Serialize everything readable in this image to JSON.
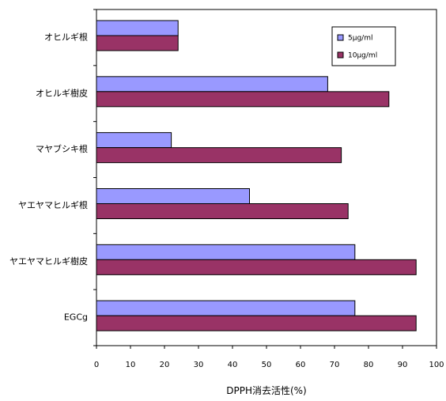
{
  "chart_data": {
    "type": "bar",
    "orientation": "horizontal",
    "categories": [
      "オヒルギ根",
      "オヒルギ樹皮",
      "マヤブシキ根",
      "ヤエヤマヒルギ根",
      "ヤエヤマヒルギ樹皮",
      "EGCg"
    ],
    "series": [
      {
        "name": "5μg/ml",
        "color": "#9999ff",
        "values": [
          24,
          68,
          22,
          45,
          76,
          76
        ]
      },
      {
        "name": "10μg/ml",
        "color": "#993366",
        "values": [
          24,
          86,
          72,
          74,
          94,
          94
        ]
      }
    ],
    "xlabel": "DPPH消去活性(%)",
    "xlim": [
      0,
      100
    ],
    "xticks": [
      0,
      10,
      20,
      30,
      40,
      50,
      60,
      70,
      80,
      90,
      100
    ],
    "legend_position": "top-right",
    "grid": false
  }
}
